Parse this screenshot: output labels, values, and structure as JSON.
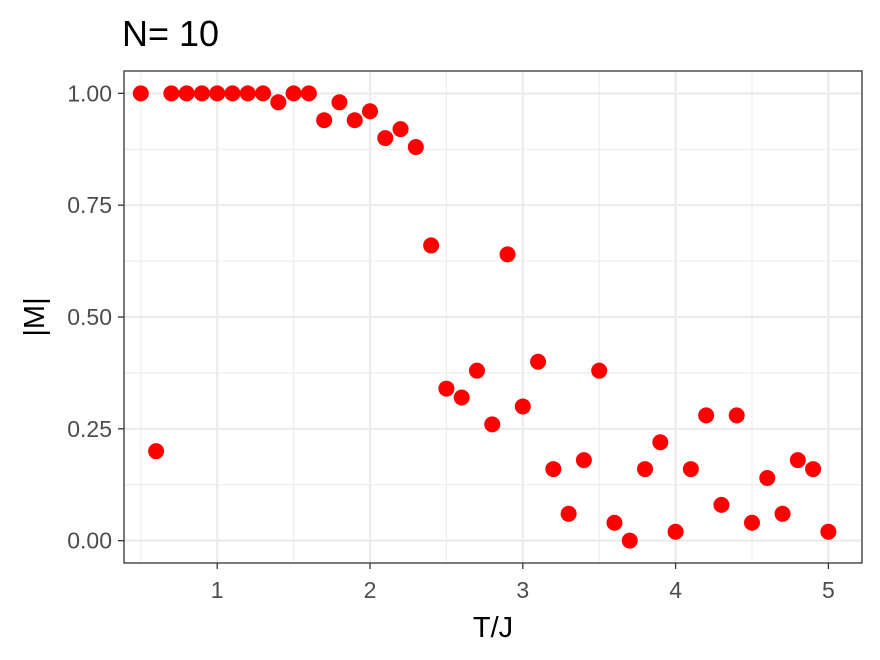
{
  "chart_data": {
    "type": "scatter",
    "title": "N= 10",
    "xlabel": "T/J",
    "ylabel": "|M|",
    "xlim": [
      0.39,
      5.22
    ],
    "ylim": [
      -0.05,
      1.05
    ],
    "x_ticks": [
      1,
      2,
      3,
      4,
      5
    ],
    "x_tick_labels": [
      "1",
      "2",
      "3",
      "4",
      "5"
    ],
    "y_ticks": [
      0,
      0.25,
      0.5,
      0.75,
      1.0
    ],
    "y_tick_labels": [
      "0.00",
      "0.25",
      "0.50",
      "0.75",
      "1.00"
    ],
    "grid": true,
    "point_color": "#ff0000",
    "x": [
      0.5,
      0.6,
      0.7,
      0.8,
      0.9,
      1.0,
      1.1,
      1.2,
      1.3,
      1.4,
      1.5,
      1.6,
      1.7,
      1.8,
      1.9,
      2.0,
      2.1,
      2.2,
      2.3,
      2.4,
      2.5,
      2.6,
      2.7,
      2.8,
      2.9,
      3.0,
      3.1,
      3.2,
      3.3,
      3.4,
      3.5,
      3.6,
      3.7,
      3.8,
      3.9,
      4.0,
      4.1,
      4.2,
      4.3,
      4.4,
      4.5,
      4.6,
      4.7,
      4.8,
      4.9,
      5.0
    ],
    "y": [
      1.0,
      0.2,
      1.0,
      1.0,
      1.0,
      1.0,
      1.0,
      1.0,
      1.0,
      0.98,
      1.0,
      1.0,
      0.94,
      0.98,
      0.94,
      0.96,
      0.9,
      0.92,
      0.88,
      0.66,
      0.34,
      0.32,
      0.38,
      0.26,
      0.64,
      0.3,
      0.4,
      0.16,
      0.06,
      0.18,
      0.38,
      0.04,
      0.0,
      0.16,
      0.22,
      0.02,
      0.16,
      0.28,
      0.08,
      0.28,
      0.04,
      0.14,
      0.06,
      0.18,
      0.16,
      0.02
    ]
  }
}
